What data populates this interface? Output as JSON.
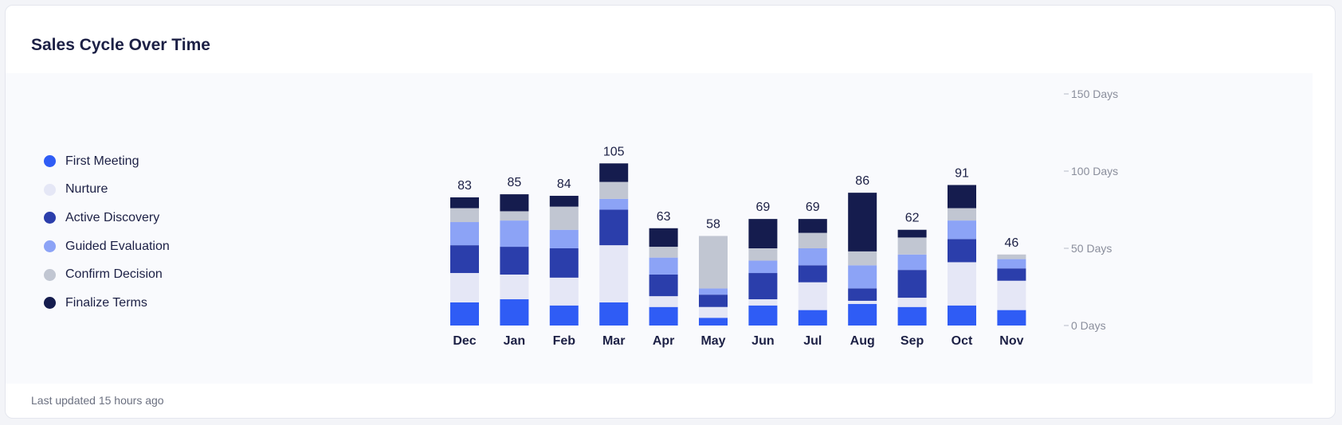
{
  "card": {
    "title": "Sales Cycle Over Time",
    "footer": "Last updated 15 hours ago"
  },
  "legend": [
    {
      "label": "First Meeting",
      "color": "#2f5cf5"
    },
    {
      "label": "Nurture",
      "color": "#e5e7f6"
    },
    {
      "label": "Active Discovery",
      "color": "#2b3eab"
    },
    {
      "label": "Guided Evaluation",
      "color": "#8ca3f6"
    },
    {
      "label": "Confirm Decision",
      "color": "#c1c6d2"
    },
    {
      "label": "Finalize Terms",
      "color": "#151c4e"
    }
  ],
  "chart_data": {
    "type": "bar",
    "stacked": true,
    "categories": [
      "Dec",
      "Jan",
      "Feb",
      "Mar",
      "Apr",
      "May",
      "Jun",
      "Jul",
      "Aug",
      "Sep",
      "Oct",
      "Nov"
    ],
    "totals": [
      83,
      85,
      84,
      105,
      63,
      58,
      69,
      69,
      86,
      62,
      91,
      46
    ],
    "series": [
      {
        "name": "First Meeting",
        "color": "#2f5cf5",
        "values": [
          15,
          17,
          13,
          15,
          12,
          5,
          13,
          10,
          14,
          12,
          13,
          10
        ]
      },
      {
        "name": "Nurture",
        "color": "#e5e7f6",
        "values": [
          19,
          16,
          18,
          37,
          7,
          7,
          4,
          18,
          2,
          6,
          28,
          19
        ]
      },
      {
        "name": "Active Discovery",
        "color": "#2b3eab",
        "values": [
          18,
          18,
          19,
          23,
          14,
          8,
          17,
          11,
          8,
          18,
          15,
          8
        ]
      },
      {
        "name": "Guided Evaluation",
        "color": "#8ca3f6",
        "values": [
          15,
          17,
          12,
          7,
          11,
          4,
          8,
          11,
          15,
          10,
          12,
          6
        ]
      },
      {
        "name": "Confirm Decision",
        "color": "#c1c6d2",
        "values": [
          9,
          6,
          15,
          11,
          7,
          34,
          8,
          10,
          9,
          11,
          8,
          3
        ]
      },
      {
        "name": "Finalize Terms",
        "color": "#151c4e",
        "values": [
          7,
          11,
          7,
          12,
          12,
          0,
          19,
          9,
          38,
          5,
          15,
          0
        ]
      }
    ],
    "yticks": [
      "0 Days",
      "50 Days",
      "100 Days",
      "150 Days"
    ],
    "ylim": [
      0,
      150
    ]
  }
}
